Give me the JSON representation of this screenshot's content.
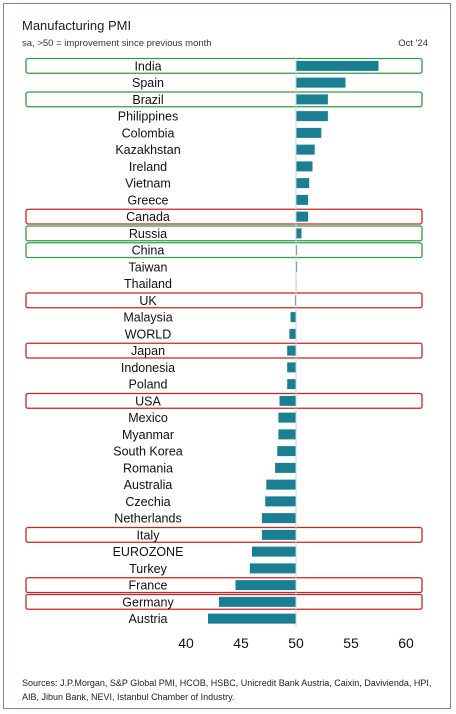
{
  "header": {
    "title": "Manufacturing PMI",
    "subtitle": "sa, >50 = improvement since previous month",
    "date": "Oct '24"
  },
  "footer": {
    "sources": "Sources: J.P.Morgan, S&P Global PMI, HCOB, HSBC, Unicredit Bank Austria, Caixin, Davivienda, HPI, AIB, Jibun Bank, NEVI, Istanbul Chamber of Industry."
  },
  "colors": {
    "bar": "#1a7f93",
    "highlight_green": "#2e9e44",
    "highlight_red": "#cc2222"
  },
  "chart_data": {
    "type": "bar",
    "orientation": "horizontal",
    "title": "Manufacturing PMI",
    "baseline": 50,
    "xlim": [
      38,
      62
    ],
    "xticks": [
      40,
      45,
      50,
      55,
      60
    ],
    "grid": false,
    "categories": [
      "India",
      "Spain",
      "Brazil",
      "Philippines",
      "Colombia",
      "Kazakhstan",
      "Ireland",
      "Vietnam",
      "Greece",
      "Canada",
      "Russia",
      "China",
      "Taiwan",
      "Thailand",
      "UK",
      "Malaysia",
      "WORLD",
      "Japan",
      "Indonesia",
      "Poland",
      "USA",
      "Mexico",
      "Myanmar",
      "South Korea",
      "Romania",
      "Australia",
      "Czechia",
      "Netherlands",
      "Italy",
      "EUROZONE",
      "Turkey",
      "France",
      "Germany",
      "Austria"
    ],
    "values": [
      57.5,
      54.5,
      52.9,
      52.9,
      52.3,
      51.7,
      51.5,
      51.2,
      51.1,
      51.1,
      50.5,
      50.1,
      50.1,
      50.0,
      49.9,
      49.5,
      49.4,
      49.2,
      49.2,
      49.2,
      48.5,
      48.4,
      48.4,
      48.3,
      48.1,
      47.3,
      47.2,
      46.9,
      46.9,
      46.0,
      45.8,
      44.5,
      43.0,
      42.0
    ],
    "highlights": {
      "India": "green",
      "Brazil": "green",
      "Russia": "green",
      "China": "green",
      "Canada": "red",
      "UK": "red",
      "Japan": "red",
      "USA": "red",
      "Italy": "red",
      "France": "red",
      "Germany": "red"
    }
  }
}
